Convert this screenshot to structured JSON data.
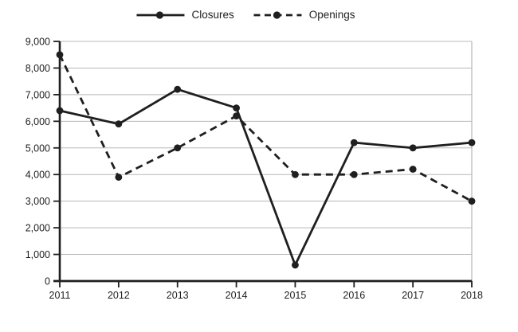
{
  "chart_data": {
    "type": "line",
    "title": "",
    "xlabel": "",
    "ylabel": "",
    "categories": [
      "2011",
      "2012",
      "2013",
      "2014",
      "2015",
      "2016",
      "2017",
      "2018"
    ],
    "series": [
      {
        "name": "Closures",
        "line_style": "solid",
        "marker": "circle",
        "values": [
          6400,
          5900,
          7200,
          6500,
          600,
          5200,
          5000,
          5200
        ]
      },
      {
        "name": "Openings",
        "line_style": "dashed",
        "marker": "circle",
        "values": [
          8500,
          3900,
          5000,
          6200,
          4000,
          4000,
          4200,
          3000
        ]
      }
    ],
    "ylim": [
      0,
      9000
    ],
    "y_ticks": [
      0,
      1000,
      2000,
      3000,
      4000,
      5000,
      6000,
      7000,
      8000,
      9000
    ],
    "y_tick_labels": [
      "0",
      "1,000",
      "2,000",
      "3,000",
      "4,000",
      "5,000",
      "6,000",
      "7,000",
      "8,000",
      "9,000"
    ],
    "grid": "horizontal",
    "legend_position": "top-center",
    "colors": {
      "series": "#1f1f1f",
      "grid": "#b8b8b8",
      "axis": "#1f1f1f",
      "text": "#1f1f1f",
      "background": "#ffffff"
    }
  }
}
